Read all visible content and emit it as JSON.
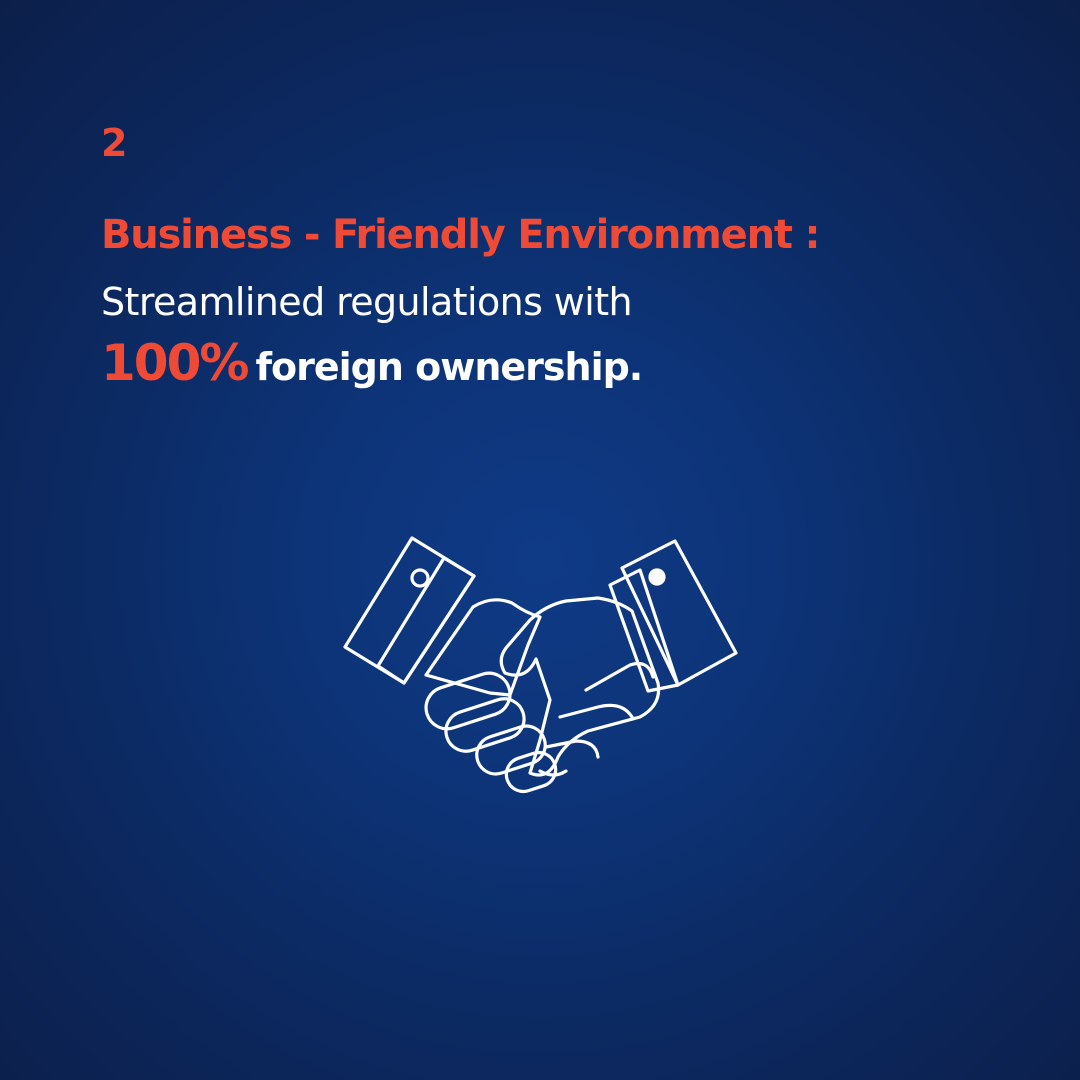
{
  "slide": {
    "number": "2",
    "headline": "Business - Friendly Environment :",
    "body_line": "Streamlined regulations with",
    "highlight_value": "100%",
    "highlight_rest": "foreign ownership."
  },
  "illustration": {
    "icon": "handshake-icon"
  },
  "colors": {
    "accent": "#ee4a36",
    "text": "#ffffff",
    "background_center": "#0f3a86",
    "background_edge": "#0c1f4a"
  }
}
